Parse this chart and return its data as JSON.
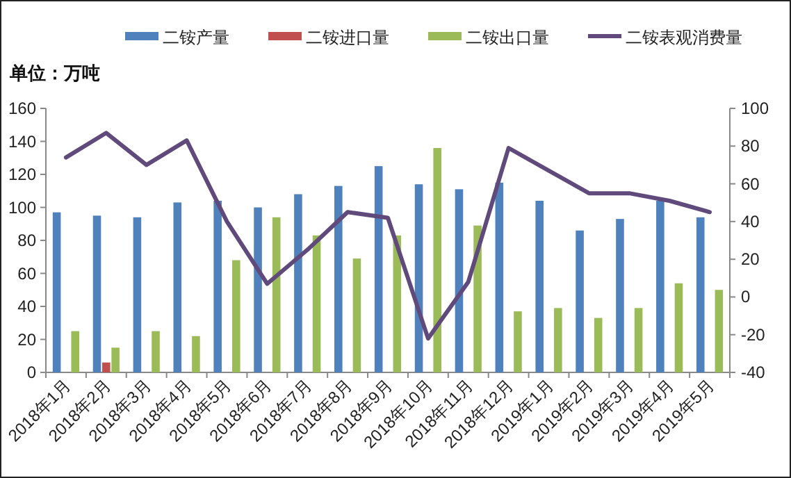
{
  "chart_data": {
    "type": "bar",
    "categories": [
      "2018年1月",
      "2018年2月",
      "2018年3月",
      "2018年4月",
      "2018年5月",
      "2018年6月",
      "2018年7月",
      "2018年8月",
      "2018年9月",
      "2018年10月",
      "2018年11月",
      "2018年12月",
      "2019年1月",
      "2019年2月",
      "2019年3月",
      "2019年4月",
      "2019年5月"
    ],
    "series": [
      {
        "name": "二铵产量",
        "color": "#4f81bd",
        "values": [
          97,
          95,
          94,
          103,
          104,
          100,
          108,
          113,
          125,
          114,
          111,
          115,
          104,
          86,
          93,
          104,
          94
        ]
      },
      {
        "name": "二铵进口量",
        "color": "#c0504d",
        "values": [
          null,
          6,
          null,
          null,
          null,
          null,
          null,
          null,
          null,
          null,
          null,
          null,
          null,
          null,
          null,
          null,
          null
        ]
      },
      {
        "name": "二铵出口量",
        "color": "#9bbb59",
        "values": [
          25,
          15,
          25,
          22,
          68,
          94,
          83,
          69,
          83,
          136,
          89,
          37,
          39,
          33,
          39,
          54,
          50
        ]
      },
      {
        "name": "二铵表观消费量",
        "type": "line",
        "axis": "y2",
        "color": "#604a7b",
        "values": [
          74,
          87,
          70,
          83,
          40,
          7,
          25,
          45,
          42,
          -22,
          8,
          79,
          67,
          55,
          55,
          51,
          45
        ]
      }
    ],
    "ylim": [
      0,
      160
    ],
    "yticks": [
      0,
      20,
      40,
      60,
      80,
      100,
      120,
      140,
      160
    ],
    "y2lim": [
      -40,
      100
    ],
    "y2ticks": [
      -40,
      -20,
      0,
      20,
      40,
      60,
      80,
      100
    ],
    "legend": "top",
    "grid": false,
    "marker": "none",
    "line_style": "solid",
    "annotations": [
      "单位：万吨"
    ]
  }
}
